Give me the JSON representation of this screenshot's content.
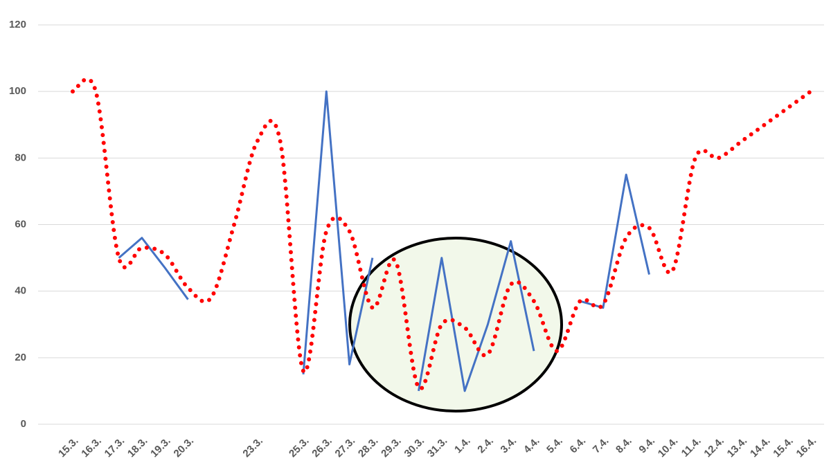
{
  "chart_data": {
    "type": "line",
    "categories": [
      "15.3.",
      "16.3.",
      "17.3.",
      "18.3.",
      "19.3.",
      "20.3.",
      null,
      null,
      "23.3.",
      null,
      "25.3.",
      "26.3.",
      "27.3.",
      "28.3.",
      "29.3.",
      "30.3.",
      "31.3.",
      "1.4.",
      "2.4.",
      "3.4.",
      "4.4.",
      "5.4.",
      "6.4.",
      "7.4.",
      "8.4.",
      "9.4.",
      "10.4.",
      "11.4.",
      "12.4.",
      "13.4.",
      "14.4.",
      "15.4.",
      "16.4."
    ],
    "series": [
      {
        "color": "#4472c4",
        "style": "solid",
        "values": [
          null,
          null,
          50,
          56,
          47,
          37.5,
          null,
          null,
          null,
          null,
          15,
          100,
          18,
          50,
          null,
          10,
          50,
          10,
          30,
          55,
          22,
          null,
          37,
          35,
          75,
          45,
          null,
          null,
          null,
          null,
          null,
          null,
          null
        ]
      },
      {
        "color": "#ff0000",
        "style": "dotted",
        "values": [
          100,
          100,
          50,
          53,
          51,
          41,
          38,
          60,
          85,
          85,
          16,
          58,
          58,
          35,
          49,
          11,
          30,
          29,
          21,
          42,
          37,
          22,
          37,
          36,
          56,
          59,
          46,
          80,
          80,
          85,
          90,
          95,
          100
        ]
      }
    ],
    "ylim": [
      0,
      120
    ],
    "yticks": [
      0,
      20,
      40,
      60,
      80,
      100,
      120
    ],
    "grid": true
  }
}
